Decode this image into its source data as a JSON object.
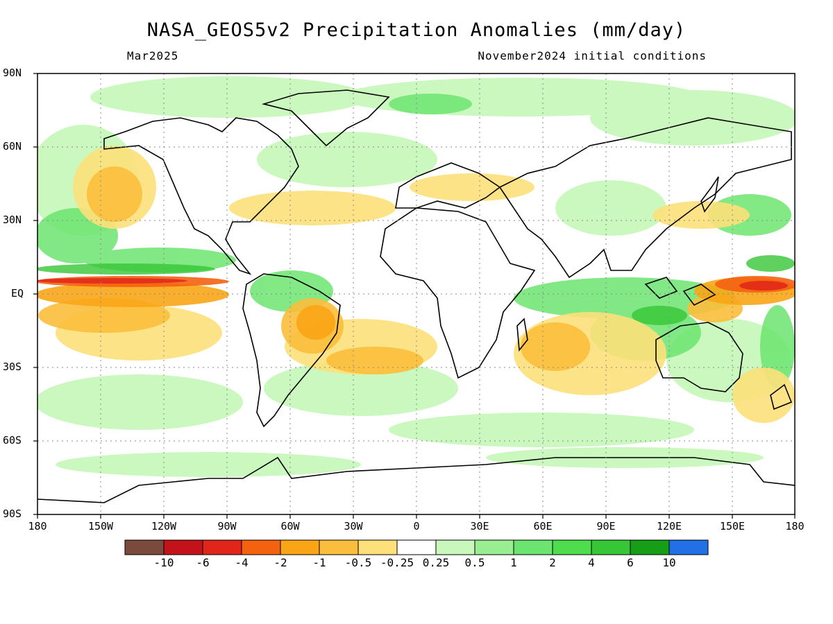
{
  "title": "NASA_GEOS5v2 Precipitation Anomalies (mm/day)",
  "valid_month": "Mar2025",
  "initial_conditions": "November2024 initial conditions",
  "lat_labels": [
    "90N",
    "60N",
    "30N",
    "EQ",
    "30S",
    "60S",
    "90S"
  ],
  "lon_labels": [
    "180",
    "150W",
    "120W",
    "90W",
    "60W",
    "30W",
    "0",
    "30E",
    "60E",
    "90E",
    "120E",
    "150E",
    "180"
  ],
  "colorbar": {
    "colors": [
      "#7a4a3d",
      "#c4121a",
      "#e0261a",
      "#f4620f",
      "#f9a516",
      "#fbbe3c",
      "#fde07a",
      "#ffffff",
      "#c8f8bc",
      "#99ee92",
      "#6ce570",
      "#4edd4c",
      "#36c636",
      "#169e16",
      "#2170e6"
    ],
    "labels": [
      "-10",
      "-6",
      "-4",
      "-2",
      "-1",
      "-0.5",
      "-0.25",
      "0.25",
      "0.5",
      "1",
      "2",
      "4",
      "6",
      "10"
    ]
  },
  "icons": [
    "coastline-map",
    "colorbar"
  ]
}
